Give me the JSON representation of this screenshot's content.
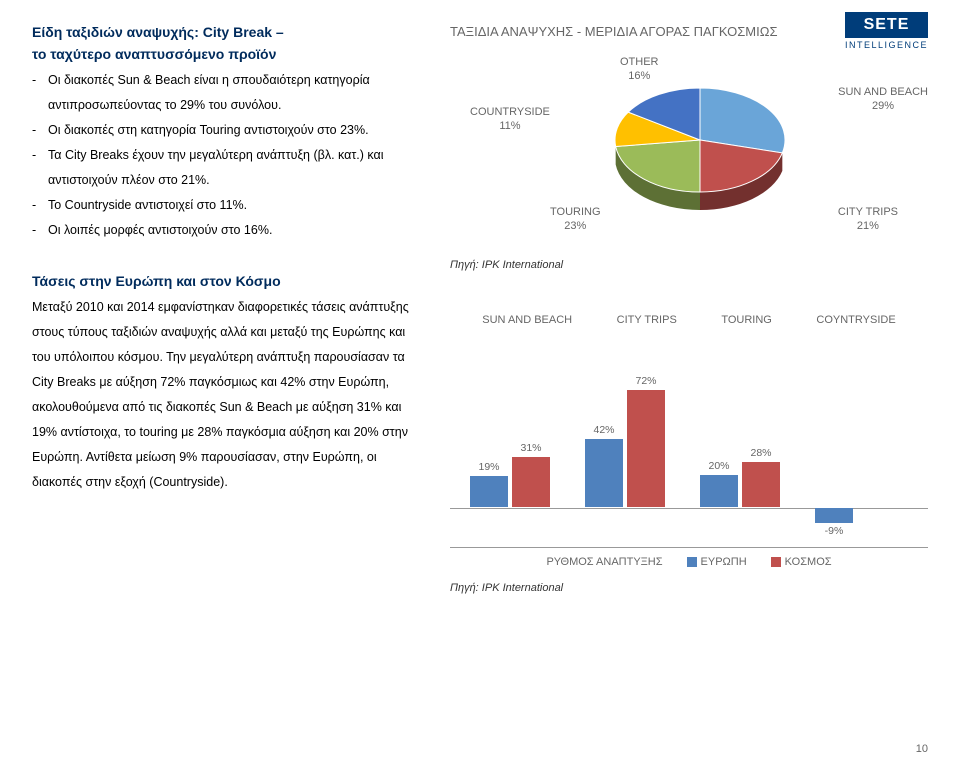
{
  "logo": {
    "text": "SETE",
    "sub": "INTELLIGENCE"
  },
  "heading1a": "Είδη ταξιδιών αναψυχής: City Break –",
  "heading1b": "το  ταχύτερο αναπτυσσόμενο προϊόν",
  "bullets1": [
    "Οι διακοπές Sun & Beach είναι η σπουδαιότερη κατηγορία αντιπροσωπεύοντας το 29% του συνόλου.",
    "Οι διακοπές  στη κατηγορία Touring αντιστοιχούν στο 23%.",
    "Τα  City Breaks έχουν την μεγαλύτερη ανάπτυξη (βλ. κατ.) και αντιστοιχούν πλέον στο 21%.",
    "Το Countryside αντιστοιχεί στο 11%.",
    "Οι λοιπές μορφές αντιστοιχούν στο 16%."
  ],
  "heading2": "Τάσεις στην Ευρώπη και στον Κόσμο",
  "para2": "Μεταξύ 2010 και 2014 εμφανίστηκαν διαφορετικές τάσεις ανάπτυξης στους τύπους ταξιδιών αναψυχής αλλά και μεταξύ της Ευρώπης και του υπόλοιπου κόσμου. Την μεγαλύτερη ανάπτυξη παρουσίασαν τα City Breaks με αύξηση 72% παγκόσμιως και  42% στην Ευρώπη, ακολουθούμενα από τις διακοπές Sun & Beach με αύξηση 31% και 19% αντίστοιχα, το touring με 28% παγκόσμια αύξηση και 20% στην Ευρώπη. Αντίθετα μείωση 9% παρουσίασαν, στην Ευρώπη, οι διακοπές στην εξοχή (Countryside).",
  "pie": {
    "title": "ΤΑΞΙΔΙΑ ΑΝΑΨΥΧΗΣ - ΜΕΡΙΔΙΑ ΑΓΟΡΑΣ ΠΑΓΚΟΣΜΙΩΣ",
    "slices": [
      {
        "label": "SUN AND BEACH",
        "pct": "29%",
        "value": 29,
        "color": "#6aa5d8"
      },
      {
        "label": "CITY TRIPS",
        "pct": "21%",
        "value": 21,
        "color": "#c0504d"
      },
      {
        "label": "TOURING",
        "pct": "23%",
        "value": 23,
        "color": "#9bbb59"
      },
      {
        "label": "COUNTRYSIDE",
        "pct": "11%",
        "value": 11,
        "color": "#ffc000"
      },
      {
        "label": "OTHER",
        "pct": "16%",
        "value": 16,
        "color": "#4472c4"
      }
    ],
    "source": "Πηγή: IPK International"
  },
  "bar": {
    "legend": [
      "SUN AND BEACH",
      "CITY TRIPS",
      "TOURING",
      "COYNTRYSIDE"
    ],
    "groups": [
      {
        "europe": 19,
        "world": 31
      },
      {
        "europe": 42,
        "world": 72
      },
      {
        "europe": 20,
        "world": 28
      },
      {
        "europe": -9,
        "world": null
      }
    ],
    "colors": {
      "europe": "#4f81bd",
      "world": "#c0504d"
    },
    "axis_label": "ΡΥΘΜΟΣ ΑΝΑΠΤΥΞΗΣ",
    "series_labels": {
      "europe": "ΕΥΡΩΠΗ",
      "world": "ΚΟΣΜΟΣ"
    },
    "source": "Πηγή: IPK International"
  },
  "page_number": "10"
}
